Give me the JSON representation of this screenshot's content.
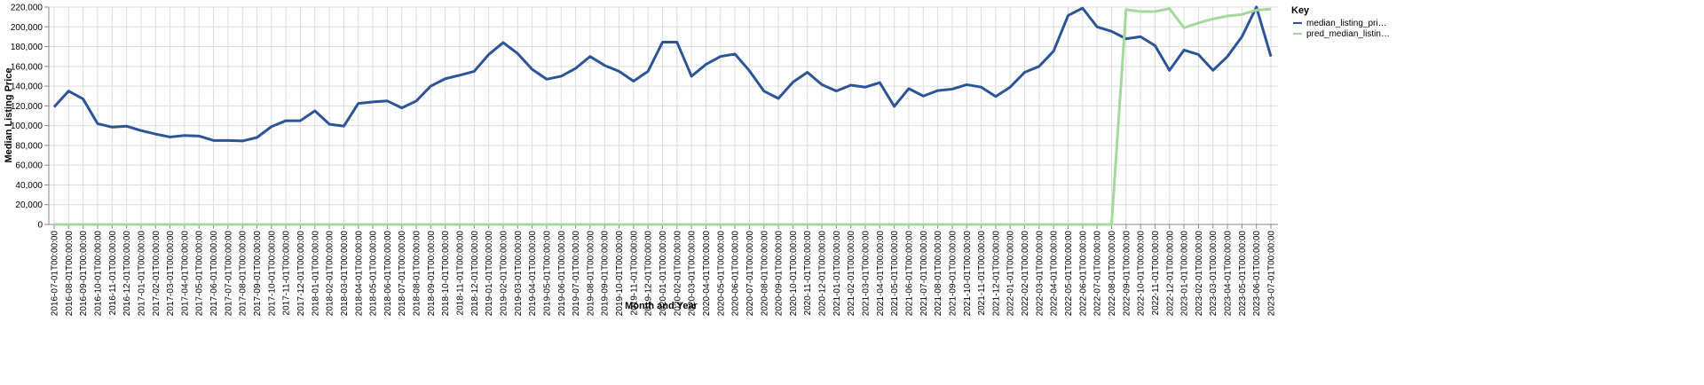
{
  "chart_data": {
    "type": "line",
    "x_label": "Month and Year",
    "y_label": "Median Listing Price",
    "categories": [
      "2016-07-01T00:00:00",
      "2016-08-01T00:00:00",
      "2016-09-01T00:00:00",
      "2016-10-01T00:00:00",
      "2016-11-01T00:00:00",
      "2016-12-01T00:00:00",
      "2017-01-01T00:00:00",
      "2017-02-01T00:00:00",
      "2017-03-01T00:00:00",
      "2017-04-01T00:00:00",
      "2017-05-01T00:00:00",
      "2017-06-01T00:00:00",
      "2017-07-01T00:00:00",
      "2017-08-01T00:00:00",
      "2017-09-01T00:00:00",
      "2017-10-01T00:00:00",
      "2017-11-01T00:00:00",
      "2017-12-01T00:00:00",
      "2018-01-01T00:00:00",
      "2018-02-01T00:00:00",
      "2018-03-01T00:00:00",
      "2018-04-01T00:00:00",
      "2018-05-01T00:00:00",
      "2018-06-01T00:00:00",
      "2018-07-01T00:00:00",
      "2018-08-01T00:00:00",
      "2018-09-01T00:00:00",
      "2018-10-01T00:00:00",
      "2018-11-01T00:00:00",
      "2018-12-01T00:00:00",
      "2019-01-01T00:00:00",
      "2019-02-01T00:00:00",
      "2019-03-01T00:00:00",
      "2019-04-01T00:00:00",
      "2019-05-01T00:00:00",
      "2019-06-01T00:00:00",
      "2019-07-01T00:00:00",
      "2019-08-01T00:00:00",
      "2019-09-01T00:00:00",
      "2019-10-01T00:00:00",
      "2019-11-01T00:00:00",
      "2019-12-01T00:00:00",
      "2020-01-01T00:00:00",
      "2020-02-01T00:00:00",
      "2020-03-01T00:00:00",
      "2020-04-01T00:00:00",
      "2020-05-01T00:00:00",
      "2020-06-01T00:00:00",
      "2020-07-01T00:00:00",
      "2020-08-01T00:00:00",
      "2020-09-01T00:00:00",
      "2020-10-01T00:00:00",
      "2020-11-01T00:00:00",
      "2020-12-01T00:00:00",
      "2021-01-01T00:00:00",
      "2021-02-01T00:00:00",
      "2021-03-01T00:00:00",
      "2021-04-01T00:00:00",
      "2021-05-01T00:00:00",
      "2021-06-01T00:00:00",
      "2021-07-01T00:00:00",
      "2021-08-01T00:00:00",
      "2021-09-01T00:00:00",
      "2021-10-01T00:00:00",
      "2021-11-01T00:00:00",
      "2021-12-01T00:00:00",
      "2022-01-01T00:00:00",
      "2022-02-01T00:00:00",
      "2022-03-01T00:00:00",
      "2022-04-01T00:00:00",
      "2022-05-01T00:00:00",
      "2022-06-01T00:00:00",
      "2022-07-01T00:00:00",
      "2022-08-01T00:00:00",
      "2022-09-01T00:00:00",
      "2022-10-01T00:00:00",
      "2022-11-01T00:00:00",
      "2022-12-01T00:00:00",
      "2023-01-01T00:00:00",
      "2023-02-01T00:00:00",
      "2023-03-01T00:00:00",
      "2023-04-01T00:00:00",
      "2023-05-01T00:00:00",
      "2023-06-01T00:00:00",
      "2023-07-01T00:00:00"
    ],
    "series": [
      {
        "name": "median_listing_pri…",
        "color": "#2c5597",
        "values": [
          119000,
          135000,
          127000,
          102000,
          98500,
          99500,
          95000,
          91500,
          88500,
          90000,
          89500,
          85000,
          85000,
          84500,
          88000,
          99000,
          105000,
          105000,
          115000,
          101500,
          99500,
          122500,
          124000,
          125000,
          118000,
          125000,
          140000,
          147500,
          151000,
          155000,
          172000,
          184000,
          173000,
          157000,
          147000,
          150000,
          158000,
          170000,
          161000,
          155000,
          145000,
          155000,
          184500,
          184500,
          150000,
          162000,
          170000,
          172500,
          155500,
          135000,
          127500,
          144000,
          154000,
          141500,
          135000,
          141000,
          139000,
          143500,
          119500,
          137500,
          130000,
          135500,
          137000,
          141500,
          139000,
          129500,
          139000,
          154000,
          160000,
          175500,
          211500,
          219000,
          200000,
          195500,
          188000,
          190000,
          181000,
          156000,
          176500,
          172000,
          156000,
          170000,
          190000,
          220000,
          170000
        ]
      },
      {
        "name": "pred_median_listin…",
        "color": "#a4d99d",
        "values": [
          0,
          0,
          0,
          0,
          0,
          0,
          0,
          0,
          0,
          0,
          0,
          0,
          0,
          0,
          0,
          0,
          0,
          0,
          0,
          0,
          0,
          0,
          0,
          0,
          0,
          0,
          0,
          0,
          0,
          0,
          0,
          0,
          0,
          0,
          0,
          0,
          0,
          0,
          0,
          0,
          0,
          0,
          0,
          0,
          0,
          0,
          0,
          0,
          0,
          0,
          0,
          0,
          0,
          0,
          0,
          0,
          0,
          0,
          0,
          0,
          0,
          0,
          0,
          0,
          0,
          0,
          0,
          0,
          0,
          0,
          0,
          0,
          0,
          0,
          217500,
          215500,
          215500,
          218500,
          199000,
          204000,
          208000,
          211000,
          212500,
          217000,
          218000
        ]
      }
    ],
    "legend_title": "Key",
    "ylim": [
      0,
      220000
    ],
    "yticks": [
      0,
      {
        "value": 20000,
        "label": "20,000"
      },
      {
        "value": 40000,
        "label": "40,000"
      },
      {
        "value": 60000,
        "label": "60,000"
      },
      {
        "value": 80000,
        "label": "80,000"
      },
      {
        "value": 100000,
        "label": "100,000"
      },
      {
        "value": 120000,
        "label": "120,000"
      },
      {
        "value": 140000,
        "label": "140,000"
      },
      {
        "value": 160000,
        "label": "160,000"
      },
      {
        "value": 180000,
        "label": "180,000"
      },
      {
        "value": 200000,
        "label": "200,000"
      },
      {
        "value": 220000,
        "label": "220,000"
      }
    ],
    "grid": true
  }
}
